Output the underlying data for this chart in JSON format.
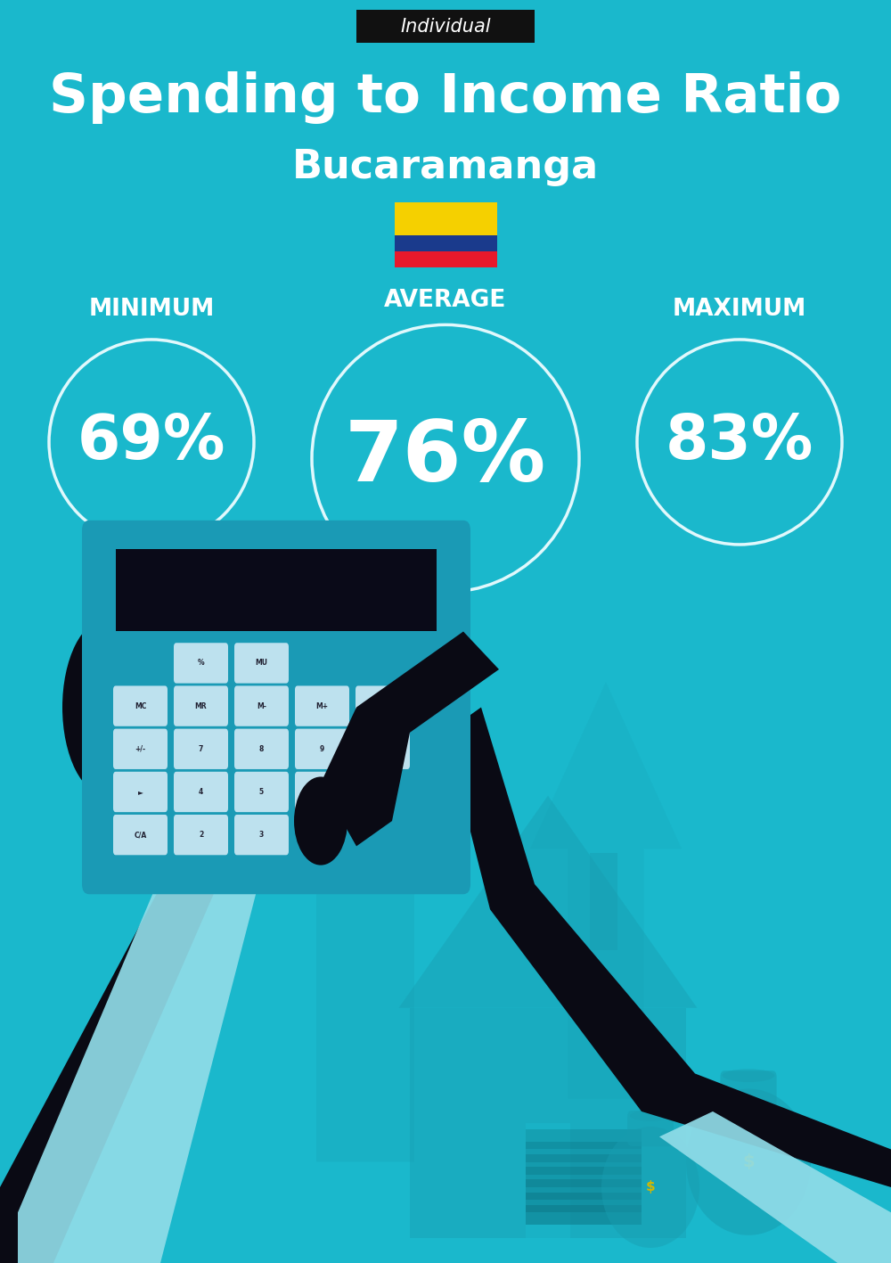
{
  "bg_color": "#1ab8cc",
  "title": "Spending to Income Ratio",
  "subtitle": "Bucaramanga",
  "tag_text": "Individual",
  "tag_bg": "#111111",
  "tag_text_color": "#ffffff",
  "title_color": "#ffffff",
  "subtitle_color": "#ffffff",
  "min_label": "MINIMUM",
  "avg_label": "AVERAGE",
  "max_label": "MAXIMUM",
  "min_value": "69%",
  "avg_value": "76%",
  "max_value": "83%",
  "label_color": "#ffffff",
  "value_color": "#ffffff",
  "circle_edge_color": "#e0f8fc",
  "flag_yellow": "#F5D000",
  "flag_blue": "#1a3a8c",
  "flag_red": "#e8192c",
  "title_fontsize": 44,
  "subtitle_fontsize": 32,
  "tag_fontsize": 15,
  "label_fontsize": 19,
  "min_value_fontsize": 50,
  "avg_value_fontsize": 68,
  "max_value_fontsize": 50,
  "circle_lw": 2.5,
  "arrow_color": "#18a8bc",
  "house_color": "#189db0",
  "dark_color": "#0a0a14",
  "cuff_color": "#90dce8",
  "calc_color": "#1a9ab5",
  "btn_color": "#cce8f4"
}
